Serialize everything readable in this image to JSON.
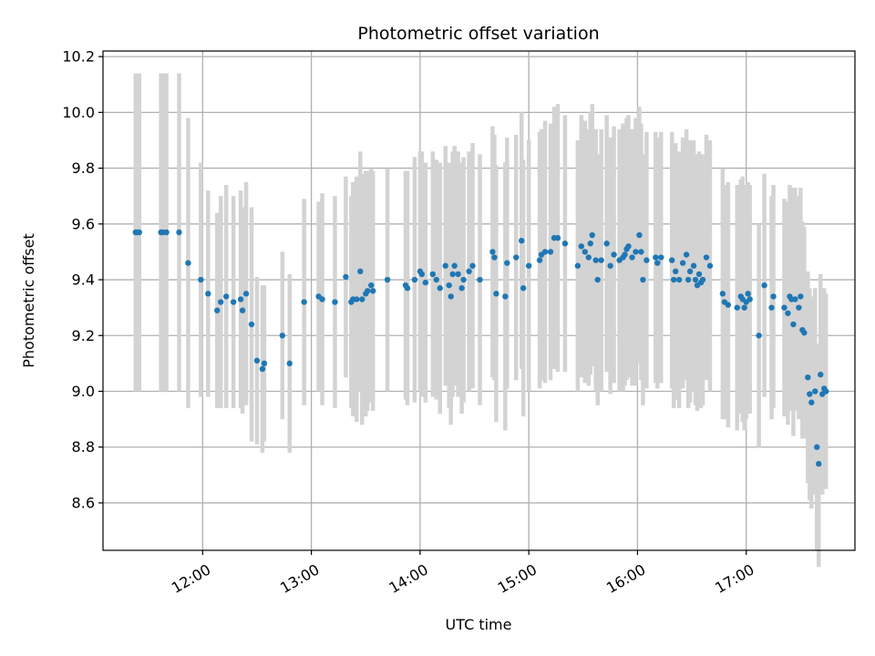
{
  "chart_data": {
    "type": "scatter",
    "title": "Photometric offset variation",
    "xlabel": "UTC time",
    "ylabel": "Photometric offset",
    "xlim": [
      "11:05",
      "18:00"
    ],
    "ylim": [
      8.43,
      10.22
    ],
    "x_ticks": [
      "12:00",
      "13:00",
      "14:00",
      "15:00",
      "16:00",
      "17:00"
    ],
    "y_ticks": [
      8.6,
      8.8,
      9.0,
      9.2,
      9.4,
      9.6,
      9.8,
      10.0,
      10.2
    ],
    "grid": true,
    "colors": {
      "point": "#1f77b4",
      "errorbar": "#d3d3d3"
    },
    "series": [
      {
        "x": [
          "11:23",
          "11:24",
          "11:25",
          "11:37",
          "11:38",
          "11:40",
          "11:47",
          "11:52",
          "11:59",
          "12:03",
          "12:08",
          "12:10",
          "12:13",
          "12:17",
          "12:21",
          "12:22",
          "12:24",
          "12:27",
          "12:30",
          "12:33",
          "12:34",
          "12:44",
          "12:48",
          "12:56",
          "13:04",
          "13:06",
          "13:13",
          "13:19",
          "13:22",
          "13:23",
          "13:25",
          "13:27",
          "13:28",
          "13:30",
          "13:31",
          "13:33",
          "13:34",
          "13:42",
          "13:52",
          "13:53",
          "13:57",
          "14:00",
          "14:01",
          "14:03",
          "14:07",
          "14:09",
          "14:11",
          "14:14",
          "14:16",
          "14:17",
          "14:18",
          "14:19",
          "14:21",
          "14:23",
          "14:24",
          "14:27",
          "14:29",
          "14:33",
          "14:40",
          "14:41",
          "14:42",
          "14:47",
          "14:48",
          "14:53",
          "14:56",
          "14:57",
          "15:00",
          "15:06",
          "15:07",
          "15:09",
          "15:12",
          "15:14",
          "15:16",
          "15:20",
          "15:27",
          "15:29",
          "15:31",
          "15:33",
          "15:34",
          "15:35",
          "15:37",
          "15:38",
          "15:40",
          "15:43",
          "15:45",
          "15:47",
          "15:50",
          "15:52",
          "15:53",
          "15:54",
          "15:55",
          "15:57",
          "15:59",
          "16:01",
          "16:02",
          "16:03",
          "16:05",
          "16:10",
          "16:11",
          "16:13",
          "16:19",
          "16:20",
          "16:21",
          "16:23",
          "16:25",
          "16:27",
          "16:28",
          "16:29",
          "16:31",
          "16:32",
          "16:33",
          "16:34",
          "16:35",
          "16:36",
          "16:38",
          "16:40",
          "16:47",
          "16:48",
          "16:50",
          "16:55",
          "16:57",
          "16:58",
          "16:59",
          "17:00",
          "17:01",
          "17:02",
          "17:07",
          "17:10",
          "17:14",
          "17:15",
          "17:21",
          "17:23",
          "17:24",
          "17:25",
          "17:26",
          "17:27",
          "17:29",
          "17:30",
          "17:31",
          "17:32",
          "17:34",
          "17:35",
          "17:36",
          "17:38",
          "17:39",
          "17:40",
          "17:41",
          "17:42",
          "17:43",
          "17:44"
        ],
        "y": [
          9.57,
          9.57,
          9.57,
          9.57,
          9.57,
          9.57,
          9.57,
          9.46,
          9.4,
          9.35,
          9.29,
          9.32,
          9.34,
          9.32,
          9.33,
          9.29,
          9.35,
          9.24,
          9.11,
          9.08,
          9.1,
          9.2,
          9.1,
          9.32,
          9.34,
          9.33,
          9.32,
          9.41,
          9.32,
          9.33,
          9.33,
          9.43,
          9.33,
          9.35,
          9.36,
          9.38,
          9.36,
          9.4,
          9.38,
          9.37,
          9.4,
          9.43,
          9.42,
          9.39,
          9.42,
          9.4,
          9.37,
          9.45,
          9.38,
          9.34,
          9.42,
          9.45,
          9.42,
          9.37,
          9.4,
          9.43,
          9.45,
          9.4,
          9.5,
          9.48,
          9.35,
          9.34,
          9.46,
          9.48,
          9.54,
          9.37,
          9.45,
          9.47,
          9.49,
          9.5,
          9.5,
          9.55,
          9.55,
          9.53,
          9.45,
          9.52,
          9.5,
          9.48,
          9.53,
          9.56,
          9.47,
          9.4,
          9.47,
          9.53,
          9.45,
          9.49,
          9.47,
          9.48,
          9.49,
          9.51,
          9.52,
          9.48,
          9.5,
          9.56,
          9.5,
          9.4,
          9.47,
          9.48,
          9.46,
          9.48,
          9.47,
          9.4,
          9.43,
          9.4,
          9.46,
          9.49,
          9.4,
          9.43,
          9.45,
          9.4,
          9.38,
          9.42,
          9.39,
          9.4,
          9.48,
          9.45,
          9.35,
          9.32,
          9.31,
          9.3,
          9.34,
          9.33,
          9.3,
          9.32,
          9.35,
          9.33,
          9.2,
          9.38,
          9.3,
          9.34,
          9.3,
          9.28,
          9.34,
          9.33,
          9.24,
          9.33,
          9.3,
          9.34,
          9.22,
          9.21,
          9.05,
          8.99,
          8.96,
          9.0,
          8.8,
          8.74,
          9.06,
          8.99,
          9.01,
          9.0
        ],
        "yerr": [
          0.57,
          0.57,
          0.57,
          0.57,
          0.57,
          0.57,
          0.57,
          0.52,
          0.42,
          0.37,
          0.35,
          0.38,
          0.4,
          0.38,
          0.39,
          0.37,
          0.4,
          0.42,
          0.3,
          0.3,
          0.28,
          0.3,
          0.32,
          0.37,
          0.34,
          0.38,
          0.38,
          0.36,
          0.38,
          0.42,
          0.44,
          0.43,
          0.45,
          0.44,
          0.43,
          0.42,
          0.43,
          0.4,
          0.41,
          0.42,
          0.44,
          0.43,
          0.44,
          0.43,
          0.44,
          0.43,
          0.45,
          0.43,
          0.44,
          0.46,
          0.44,
          0.43,
          0.44,
          0.45,
          0.44,
          0.43,
          0.44,
          0.45,
          0.45,
          0.44,
          0.46,
          0.48,
          0.45,
          0.44,
          0.46,
          0.46,
          0.45,
          0.46,
          0.45,
          0.47,
          0.46,
          0.47,
          0.48,
          0.46,
          0.45,
          0.47,
          0.47,
          0.46,
          0.47,
          0.47,
          0.47,
          0.45,
          0.47,
          0.46,
          0.46,
          0.46,
          0.47,
          0.48,
          0.47,
          0.47,
          0.47,
          0.46,
          0.48,
          0.46,
          0.46,
          0.45,
          0.46,
          0.45,
          0.45,
          0.45,
          0.46,
          0.46,
          0.46,
          0.46,
          0.45,
          0.45,
          0.46,
          0.47,
          0.45,
          0.45,
          0.45,
          0.44,
          0.45,
          0.45,
          0.44,
          0.45,
          0.45,
          0.42,
          0.44,
          0.44,
          0.42,
          0.44,
          0.44,
          0.42,
          0.4,
          0.41,
          0.4,
          0.4,
          0.4,
          0.4,
          0.39,
          0.4,
          0.4,
          0.4,
          0.4,
          0.4,
          0.4,
          0.39,
          0.39,
          0.38,
          0.38,
          0.38,
          0.38,
          0.37,
          0.37,
          0.37,
          0.36,
          0.36,
          0.36,
          0.35
        ]
      }
    ]
  }
}
